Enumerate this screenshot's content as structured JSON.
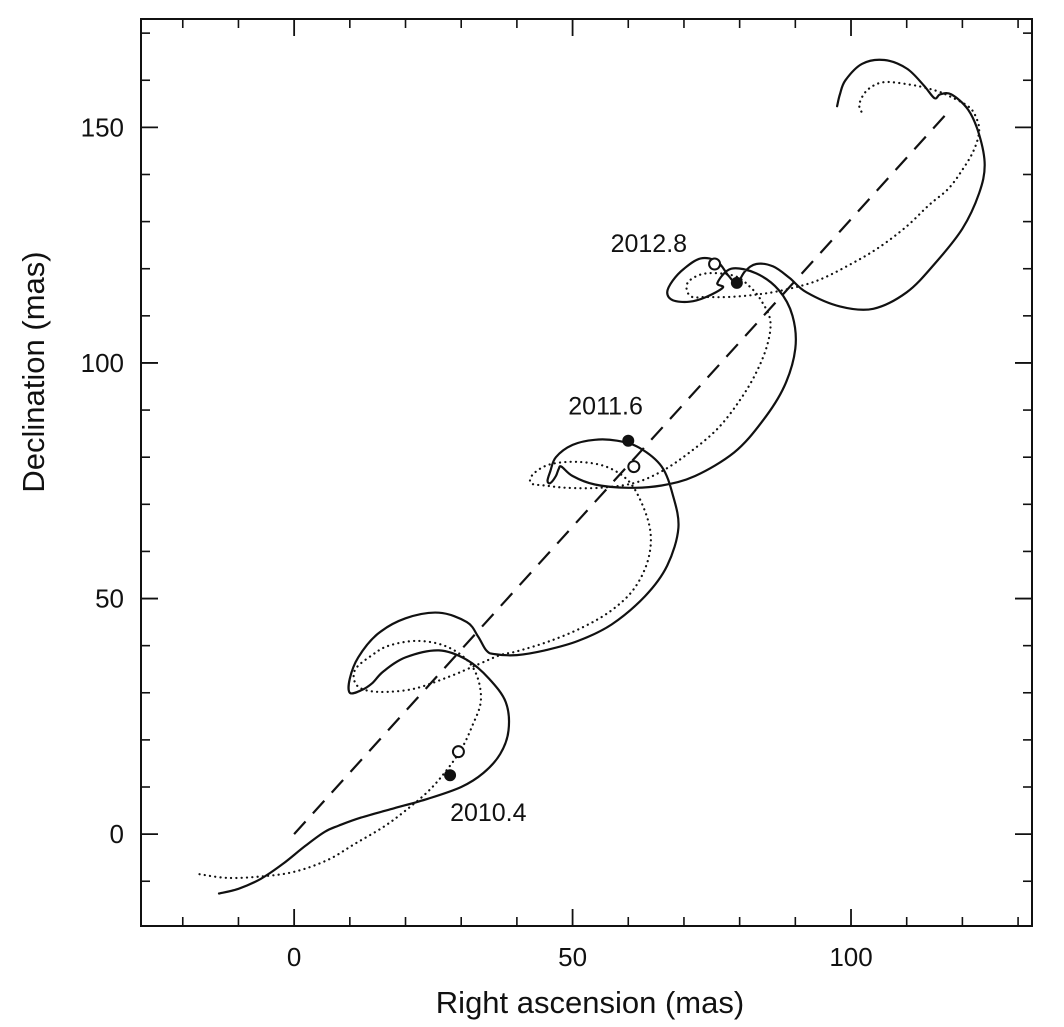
{
  "chart_data": {
    "type": "line",
    "title": "",
    "xlabel": "Right ascension (mas)",
    "ylabel": "Declination (mas)",
    "xlim": [
      -27.5,
      132.5
    ],
    "ylim": [
      -19.5,
      173
    ],
    "grid": false,
    "x_ticks": [
      0,
      50,
      100
    ],
    "y_ticks": [
      0,
      50,
      100,
      150
    ],
    "x_tick_labels": [
      "0",
      "50",
      "100"
    ],
    "y_tick_labels": [
      "0",
      "50",
      "100",
      "150"
    ],
    "x_minor_step": 10,
    "y_minor_step": 10,
    "series": [
      {
        "style": "solid",
        "points": [
          [
            -13.5,
            -12.6
          ],
          [
            -10,
            -11.6
          ],
          [
            -6,
            -9.5
          ],
          [
            -2,
            -6.3
          ],
          [
            2,
            -2.5
          ],
          [
            5.5,
            0.5
          ],
          [
            8,
            1.8
          ],
          [
            12,
            3.5
          ],
          [
            18,
            5.5
          ],
          [
            24,
            7.5
          ],
          [
            30,
            10
          ],
          [
            34,
            13
          ],
          [
            37,
            17
          ],
          [
            38.5,
            22
          ],
          [
            38,
            28
          ],
          [
            35,
            33
          ],
          [
            31,
            37
          ],
          [
            26,
            39
          ],
          [
            20,
            37.5
          ],
          [
            16,
            34.5
          ],
          [
            14,
            32
          ],
          [
            12,
            30.5
          ],
          [
            10,
            30
          ],
          [
            10,
            33
          ],
          [
            11.5,
            37.5
          ],
          [
            15,
            42.5
          ],
          [
            20,
            45.8
          ],
          [
            26,
            47
          ],
          [
            31,
            45
          ],
          [
            33,
            42
          ],
          [
            34.5,
            39
          ],
          [
            36,
            38.2
          ],
          [
            40,
            38
          ],
          [
            45,
            39
          ],
          [
            51,
            41
          ],
          [
            57,
            44.5
          ],
          [
            63,
            50.5
          ],
          [
            67,
            57
          ],
          [
            69,
            65
          ],
          [
            68,
            72
          ],
          [
            66,
            78
          ],
          [
            62,
            82
          ],
          [
            58,
            83.5
          ],
          [
            54,
            83.7
          ],
          [
            50,
            82.6
          ],
          [
            47,
            80
          ],
          [
            46,
            77
          ],
          [
            45.5,
            75
          ],
          [
            46,
            74.5
          ],
          [
            47,
            76
          ],
          [
            47.5,
            77.5
          ],
          [
            48,
            78
          ],
          [
            50,
            76
          ],
          [
            54,
            74.2
          ],
          [
            60,
            73.5
          ],
          [
            66,
            74
          ],
          [
            72,
            76
          ],
          [
            79,
            81
          ],
          [
            84,
            87.5
          ],
          [
            88,
            95
          ],
          [
            90,
            103
          ],
          [
            89.5,
            110
          ],
          [
            87,
            115.5
          ],
          [
            83,
            119
          ],
          [
            78.5,
            120
          ],
          [
            76,
            117
          ],
          [
            77,
            116
          ],
          [
            74,
            114
          ],
          [
            71,
            113
          ],
          [
            68,
            113.3
          ],
          [
            67,
            115
          ],
          [
            68,
            117.5
          ],
          [
            70,
            120
          ],
          [
            73,
            122.2
          ],
          [
            76,
            121.5
          ],
          [
            78,
            118.5
          ],
          [
            79.5,
            117
          ],
          [
            81,
            119.5
          ],
          [
            83,
            121
          ],
          [
            86,
            120.5
          ],
          [
            89,
            118
          ],
          [
            92,
            115
          ],
          [
            98,
            112
          ],
          [
            104,
            111.5
          ],
          [
            110,
            115
          ],
          [
            115,
            121
          ],
          [
            120,
            128.5
          ],
          [
            123,
            136
          ],
          [
            124,
            142
          ],
          [
            123,
            148.5
          ],
          [
            121,
            153.8
          ],
          [
            118,
            157
          ],
          [
            116,
            157
          ],
          [
            115,
            156.2
          ],
          [
            113,
            159
          ],
          [
            110,
            162.5
          ],
          [
            106,
            164.3
          ],
          [
            102,
            163.5
          ],
          [
            99,
            160
          ],
          [
            98,
            157
          ],
          [
            97.5,
            154.5
          ]
        ]
      },
      {
        "style": "dotted",
        "points": [
          [
            -17,
            -8.5
          ],
          [
            -12,
            -9.3
          ],
          [
            -6,
            -9
          ],
          [
            0,
            -8
          ],
          [
            6,
            -5.5
          ],
          [
            11,
            -2
          ],
          [
            16,
            1.5
          ],
          [
            20,
            5
          ],
          [
            24,
            9
          ],
          [
            27,
            13
          ],
          [
            30,
            18
          ],
          [
            32,
            23
          ],
          [
            33.5,
            28
          ],
          [
            33,
            33
          ],
          [
            31,
            37
          ],
          [
            27,
            40
          ],
          [
            22,
            41
          ],
          [
            17,
            40
          ],
          [
            14,
            38
          ],
          [
            11,
            35
          ],
          [
            11,
            32
          ],
          [
            13,
            30.5
          ],
          [
            17,
            30.2
          ],
          [
            22,
            31
          ],
          [
            28,
            33.5
          ],
          [
            33,
            36
          ],
          [
            37,
            38
          ],
          [
            40,
            38.8
          ],
          [
            46,
            41
          ],
          [
            52,
            44
          ],
          [
            57,
            47.5
          ],
          [
            61,
            52
          ],
          [
            63.5,
            58
          ],
          [
            64,
            64
          ],
          [
            62.5,
            70
          ],
          [
            60,
            75
          ],
          [
            56,
            78
          ],
          [
            51,
            79
          ],
          [
            46,
            78.5
          ],
          [
            43,
            76.5
          ],
          [
            42.5,
            74.5
          ],
          [
            45,
            74
          ],
          [
            49,
            73.5
          ],
          [
            55,
            73.5
          ],
          [
            61,
            74.5
          ],
          [
            66,
            77
          ],
          [
            71,
            81
          ],
          [
            76,
            86
          ],
          [
            80,
            92
          ],
          [
            83,
            98
          ],
          [
            85,
            104
          ],
          [
            85.5,
            109
          ],
          [
            84,
            113
          ],
          [
            82,
            116
          ],
          [
            79,
            118.5
          ],
          [
            74,
            119
          ],
          [
            71,
            117.5
          ],
          [
            70.5,
            115.5
          ],
          [
            71.5,
            114
          ],
          [
            74,
            114
          ],
          [
            78,
            114
          ],
          [
            83,
            114.5
          ],
          [
            88,
            115.5
          ],
          [
            94,
            117.5
          ],
          [
            100,
            121
          ],
          [
            105,
            124.5
          ],
          [
            110,
            129
          ],
          [
            114,
            133.5
          ],
          [
            117.5,
            137
          ],
          [
            120,
            141
          ],
          [
            122,
            145
          ],
          [
            123,
            149
          ],
          [
            122.5,
            152
          ],
          [
            121,
            154.5
          ],
          [
            117,
            157
          ],
          [
            116,
            157.5
          ],
          [
            114,
            158.2
          ],
          [
            111,
            159
          ],
          [
            106,
            159.6
          ],
          [
            103,
            158
          ],
          [
            101.5,
            155
          ],
          [
            102,
            153
          ]
        ]
      },
      {
        "style": "dashed",
        "points": [
          [
            0,
            0
          ],
          [
            118,
            154
          ]
        ]
      }
    ],
    "filled_markers": [
      [
        28,
        12.5
      ],
      [
        60,
        83.5
      ],
      [
        79.5,
        117
      ]
    ],
    "open_markers": [
      [
        29.5,
        17.5
      ],
      [
        61,
        78
      ],
      [
        75.5,
        121
      ]
    ],
    "annotations": [
      {
        "text": "2010.4",
        "x": 28,
        "y": 12.5
      },
      {
        "text": "2011.6",
        "x": 60,
        "y": 83.5
      },
      {
        "text": "2012.8",
        "x": 75.5,
        "y": 121
      }
    ]
  }
}
